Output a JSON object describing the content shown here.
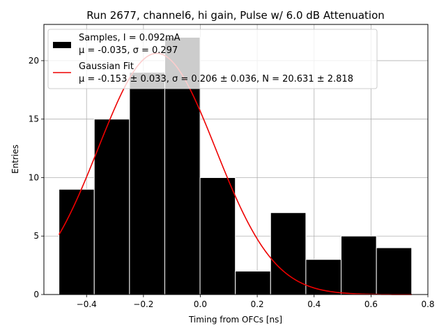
{
  "chart_data": {
    "type": "bar",
    "title": "Run 2677, channel6, hi gain, Pulse w/ 6.0 dB Attenuation",
    "xlabel": "Timing from OFCs [ns]",
    "ylabel": "Entries",
    "xlim": [
      -0.55,
      0.8
    ],
    "ylim": [
      0,
      23.1
    ],
    "grid": true,
    "xticks": [
      -0.4,
      -0.2,
      0.0,
      0.2,
      0.4,
      0.6,
      0.8
    ],
    "xtick_labels": [
      "−0.4",
      "−0.2",
      "0.0",
      "0.2",
      "0.4",
      "0.6",
      "0.8"
    ],
    "yticks": [
      0,
      5,
      10,
      15,
      20
    ],
    "ytick_labels": [
      "0",
      "5",
      "10",
      "15",
      "20"
    ],
    "bin_edges": [
      -0.497,
      -0.373,
      -0.249,
      -0.125,
      -0.001,
      0.123,
      0.247,
      0.371,
      0.495,
      0.619,
      0.743
    ],
    "values": [
      9,
      15,
      19,
      22,
      10,
      2,
      7,
      3,
      5,
      4
    ],
    "bar_color": "#000000",
    "fit_color": "#ee0000",
    "fit": {
      "mu": -0.153,
      "sigma": 0.206,
      "N": 20.631,
      "x_range": [
        -0.497,
        0.743
      ]
    },
    "legend": {
      "position": "top-left",
      "samples_line1": "Samples, I = 0.092mA",
      "samples_line2": "μ = -0.035, σ = 0.297",
      "fit_line1": "Gaussian Fit",
      "fit_line2": "μ = -0.153 ± 0.033, σ = 0.206 ± 0.036, N = 20.631 ± 2.818"
    }
  }
}
